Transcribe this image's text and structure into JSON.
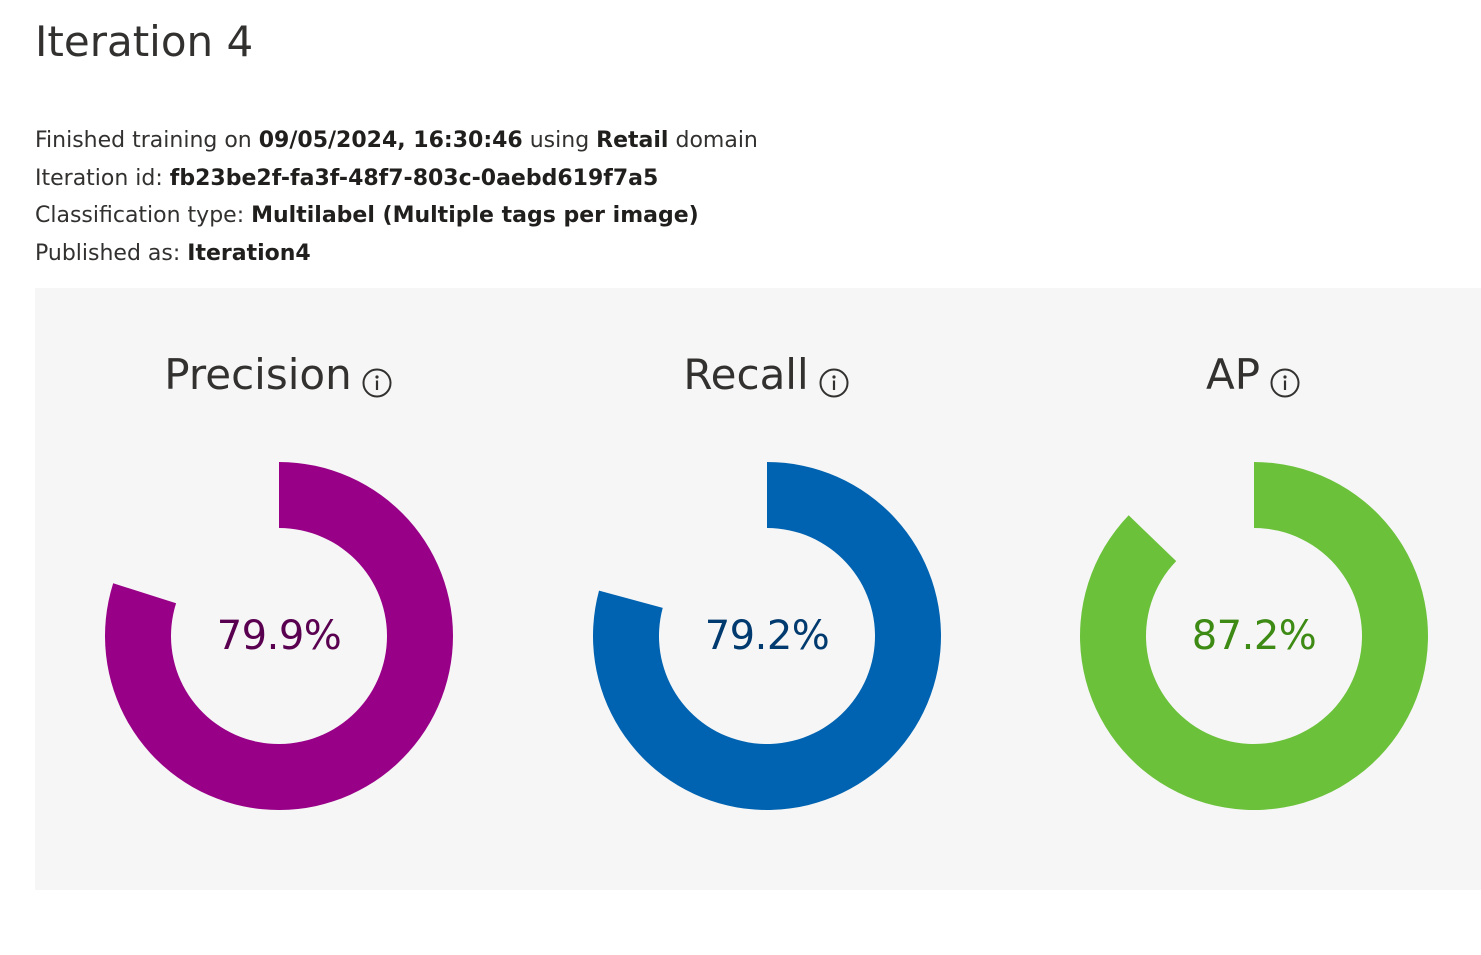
{
  "header": {
    "title": "Iteration 4"
  },
  "details": {
    "finished_prefix": "Finished training on ",
    "finished_datetime": "09/05/2024, 16:30:46",
    "finished_middle": " using ",
    "domain_name": "Retail",
    "finished_suffix": " domain",
    "iteration_id_label": "Iteration id: ",
    "iteration_id": "fb23be2f-fa3f-48f7-803c-0aebd619f7a5",
    "classification_label": "Classification type: ",
    "classification_value": "Multilabel (Multiple tags per image)",
    "published_label": "Published as: ",
    "published_value": "Iteration4"
  },
  "metrics": [
    {
      "title": "Precision",
      "value_text": "79.9%",
      "value": 0.799,
      "color": "#990088",
      "text_color": "#5a0050",
      "icon": "info-icon"
    },
    {
      "title": "Recall",
      "value_text": "79.2%",
      "value": 0.792,
      "color": "#0063b1",
      "text_color": "#003a6e",
      "icon": "info-icon"
    },
    {
      "title": "AP",
      "value_text": "87.2%",
      "value": 0.872,
      "color": "#6bc23a",
      "text_color": "#3d8a14",
      "icon": "info-icon"
    }
  ],
  "colors": {
    "panel_background": "#f6f6f6",
    "text": "#323130"
  }
}
